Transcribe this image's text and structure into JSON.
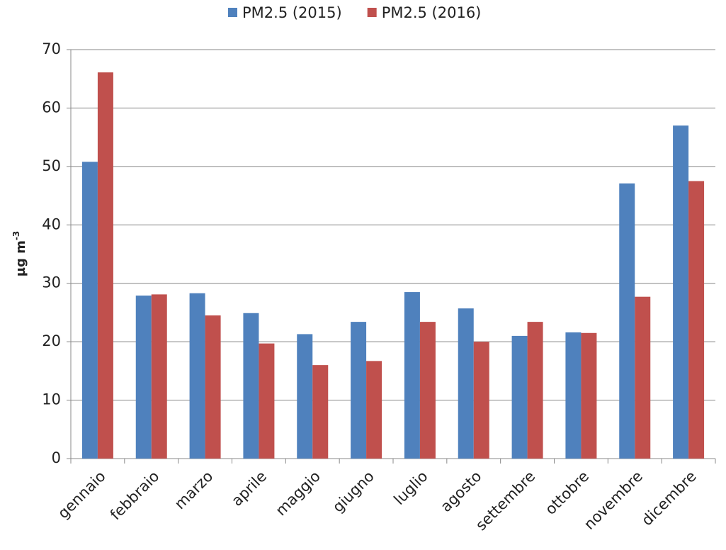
{
  "chart_data": {
    "type": "bar",
    "y_label": {
      "text": "µg m",
      "superscript": "-3"
    },
    "categories": [
      "gennaio",
      "febbraio",
      "marzo",
      "aprile",
      "maggio",
      "giugno",
      "luglio",
      "agosto",
      "settembre",
      "ottobre",
      "novembre",
      "dicembre"
    ],
    "series": [
      {
        "name": "PM2.5 (2015)",
        "color": "#4f81bd",
        "values": [
          50.8,
          27.9,
          28.3,
          24.9,
          21.3,
          23.4,
          28.5,
          25.7,
          21.0,
          21.6,
          47.1,
          57.0
        ]
      },
      {
        "name": "PM2.5 (2016)",
        "color": "#c0504d",
        "values": [
          66.1,
          28.1,
          24.5,
          19.7,
          16.0,
          16.7,
          23.4,
          20.0,
          23.4,
          21.5,
          27.7,
          47.5
        ]
      }
    ],
    "ylim": [
      0,
      70
    ],
    "yticks": [
      0,
      10,
      20,
      30,
      40,
      50,
      60,
      70
    ],
    "grid": true,
    "legend": "top"
  }
}
